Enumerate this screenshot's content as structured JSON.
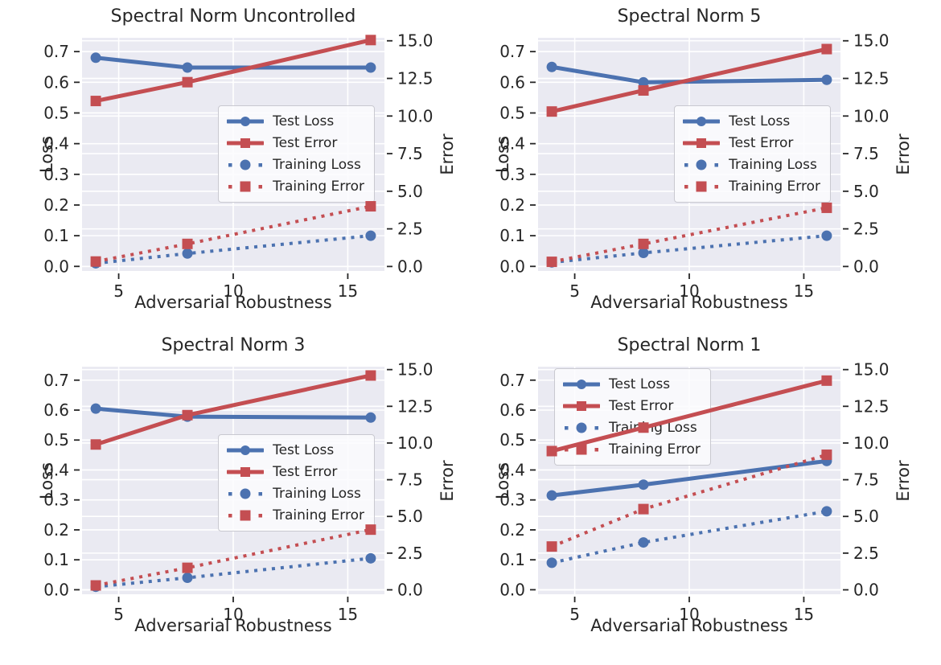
{
  "palette": {
    "blue": "#4C72B0",
    "red": "#C44E52",
    "axes_background": "#EAEAF2",
    "gridline": "#FFFFFF",
    "text": "#262626",
    "tick_mark": "#262626",
    "legend_background": "rgba(252,252,254,0.85)",
    "legend_border": "#C9C9D0"
  },
  "legend": {
    "items": [
      {
        "label": "Test Loss",
        "color": "#4C72B0",
        "line": "solid",
        "marker": "circle"
      },
      {
        "label": "Test Error",
        "color": "#C44E52",
        "line": "solid",
        "marker": "square"
      },
      {
        "label": "Training Loss",
        "color": "#4C72B0",
        "line": "dotted",
        "marker": "circle"
      },
      {
        "label": "Training Error",
        "color": "#C44E52",
        "line": "dotted",
        "marker": "square"
      }
    ]
  },
  "chart_data": [
    {
      "type": "line",
      "title": "Spectral Norm Uncontrolled",
      "x_label": "Adversarial Robustness",
      "x": [
        4,
        8,
        16
      ],
      "xticks": [
        5,
        10,
        15
      ],
      "xlim": [
        3.4,
        16.6
      ],
      "left_axis": {
        "label": "Loss",
        "ticks": [
          0.0,
          0.1,
          0.2,
          0.3,
          0.4,
          0.5,
          0.6,
          0.7
        ],
        "lim": [
          -0.015,
          0.745
        ]
      },
      "right_axis": {
        "label": "Error",
        "ticks": [
          0.0,
          2.5,
          5.0,
          7.5,
          10.0,
          12.5,
          15.0
        ],
        "lim": [
          -0.3,
          15.2
        ]
      },
      "grid": true,
      "legend_loc": "center-right",
      "series": [
        {
          "name": "Test Loss",
          "axis": "left",
          "color": "#4C72B0",
          "line": "solid",
          "marker": "circle",
          "values": [
            0.68,
            0.648,
            0.648
          ]
        },
        {
          "name": "Test Error",
          "axis": "right",
          "color": "#C44E52",
          "line": "solid",
          "marker": "square",
          "values": [
            11.0,
            12.25,
            15.05
          ]
        },
        {
          "name": "Training Loss",
          "axis": "left",
          "color": "#4C72B0",
          "line": "dotted",
          "marker": "circle",
          "values": [
            0.01,
            0.042,
            0.1
          ]
        },
        {
          "name": "Training Error",
          "axis": "right",
          "color": "#C44E52",
          "line": "dotted",
          "marker": "square",
          "values": [
            0.33,
            1.5,
            4.0
          ]
        }
      ]
    },
    {
      "type": "line",
      "title": "Spectral Norm 5",
      "x_label": "Adversarial Robustness",
      "x": [
        4,
        8,
        16
      ],
      "xticks": [
        5,
        10,
        15
      ],
      "xlim": [
        3.4,
        16.6
      ],
      "left_axis": {
        "label": "Loss",
        "ticks": [
          0.0,
          0.1,
          0.2,
          0.3,
          0.4,
          0.5,
          0.6,
          0.7
        ],
        "lim": [
          -0.015,
          0.745
        ]
      },
      "right_axis": {
        "label": "Error",
        "ticks": [
          0.0,
          2.5,
          5.0,
          7.5,
          10.0,
          12.5,
          15.0
        ],
        "lim": [
          -0.3,
          15.2
        ]
      },
      "grid": true,
      "legend_loc": "center-right",
      "series": [
        {
          "name": "Test Loss",
          "axis": "left",
          "color": "#4C72B0",
          "line": "solid",
          "marker": "circle",
          "values": [
            0.65,
            0.6,
            0.608
          ]
        },
        {
          "name": "Test Error",
          "axis": "right",
          "color": "#C44E52",
          "line": "solid",
          "marker": "square",
          "values": [
            10.3,
            11.7,
            14.45
          ]
        },
        {
          "name": "Training Loss",
          "axis": "left",
          "color": "#4C72B0",
          "line": "dotted",
          "marker": "circle",
          "values": [
            0.013,
            0.044,
            0.1
          ]
        },
        {
          "name": "Training Error",
          "axis": "right",
          "color": "#C44E52",
          "line": "dotted",
          "marker": "square",
          "values": [
            0.31,
            1.5,
            3.9
          ]
        }
      ]
    },
    {
      "type": "line",
      "title": "Spectral Norm 3",
      "x_label": "Adversarial Robustness",
      "x": [
        4,
        8,
        16
      ],
      "xticks": [
        5,
        10,
        15
      ],
      "xlim": [
        3.4,
        16.6
      ],
      "left_axis": {
        "label": "Loss",
        "ticks": [
          0.0,
          0.1,
          0.2,
          0.3,
          0.4,
          0.5,
          0.6,
          0.7
        ],
        "lim": [
          -0.015,
          0.745
        ]
      },
      "right_axis": {
        "label": "Error",
        "ticks": [
          0.0,
          2.5,
          5.0,
          7.5,
          10.0,
          12.5,
          15.0
        ],
        "lim": [
          -0.3,
          15.2
        ]
      },
      "grid": true,
      "legend_loc": "center-right",
      "series": [
        {
          "name": "Test Loss",
          "axis": "left",
          "color": "#4C72B0",
          "line": "solid",
          "marker": "circle",
          "values": [
            0.605,
            0.578,
            0.575
          ]
        },
        {
          "name": "Test Error",
          "axis": "right",
          "color": "#C44E52",
          "line": "solid",
          "marker": "square",
          "values": [
            9.9,
            11.9,
            14.6
          ]
        },
        {
          "name": "Training Loss",
          "axis": "left",
          "color": "#4C72B0",
          "line": "dotted",
          "marker": "circle",
          "values": [
            0.01,
            0.04,
            0.105
          ]
        },
        {
          "name": "Training Error",
          "axis": "right",
          "color": "#C44E52",
          "line": "dotted",
          "marker": "square",
          "values": [
            0.3,
            1.5,
            4.1
          ]
        }
      ]
    },
    {
      "type": "line",
      "title": "Spectral Norm 1",
      "x_label": "Adversarial Robustness",
      "x": [
        4,
        8,
        16
      ],
      "xticks": [
        5,
        10,
        15
      ],
      "xlim": [
        3.4,
        16.6
      ],
      "left_axis": {
        "label": "Loss",
        "ticks": [
          0.0,
          0.1,
          0.2,
          0.3,
          0.4,
          0.5,
          0.6,
          0.7
        ],
        "lim": [
          -0.015,
          0.745
        ]
      },
      "right_axis": {
        "label": "Error",
        "ticks": [
          0.0,
          2.5,
          5.0,
          7.5,
          10.0,
          12.5,
          15.0
        ],
        "lim": [
          -0.3,
          15.2
        ]
      },
      "grid": true,
      "legend_loc": "upper-left",
      "series": [
        {
          "name": "Test Loss",
          "axis": "left",
          "color": "#4C72B0",
          "line": "solid",
          "marker": "circle",
          "values": [
            0.315,
            0.351,
            0.43
          ]
        },
        {
          "name": "Test Error",
          "axis": "right",
          "color": "#C44E52",
          "line": "solid",
          "marker": "square",
          "values": [
            9.45,
            11.05,
            14.25
          ]
        },
        {
          "name": "Training Loss",
          "axis": "left",
          "color": "#4C72B0",
          "line": "dotted",
          "marker": "circle",
          "values": [
            0.09,
            0.158,
            0.262
          ]
        },
        {
          "name": "Training Error",
          "axis": "right",
          "color": "#C44E52",
          "line": "dotted",
          "marker": "square",
          "values": [
            2.95,
            5.5,
            9.2
          ]
        }
      ]
    }
  ]
}
